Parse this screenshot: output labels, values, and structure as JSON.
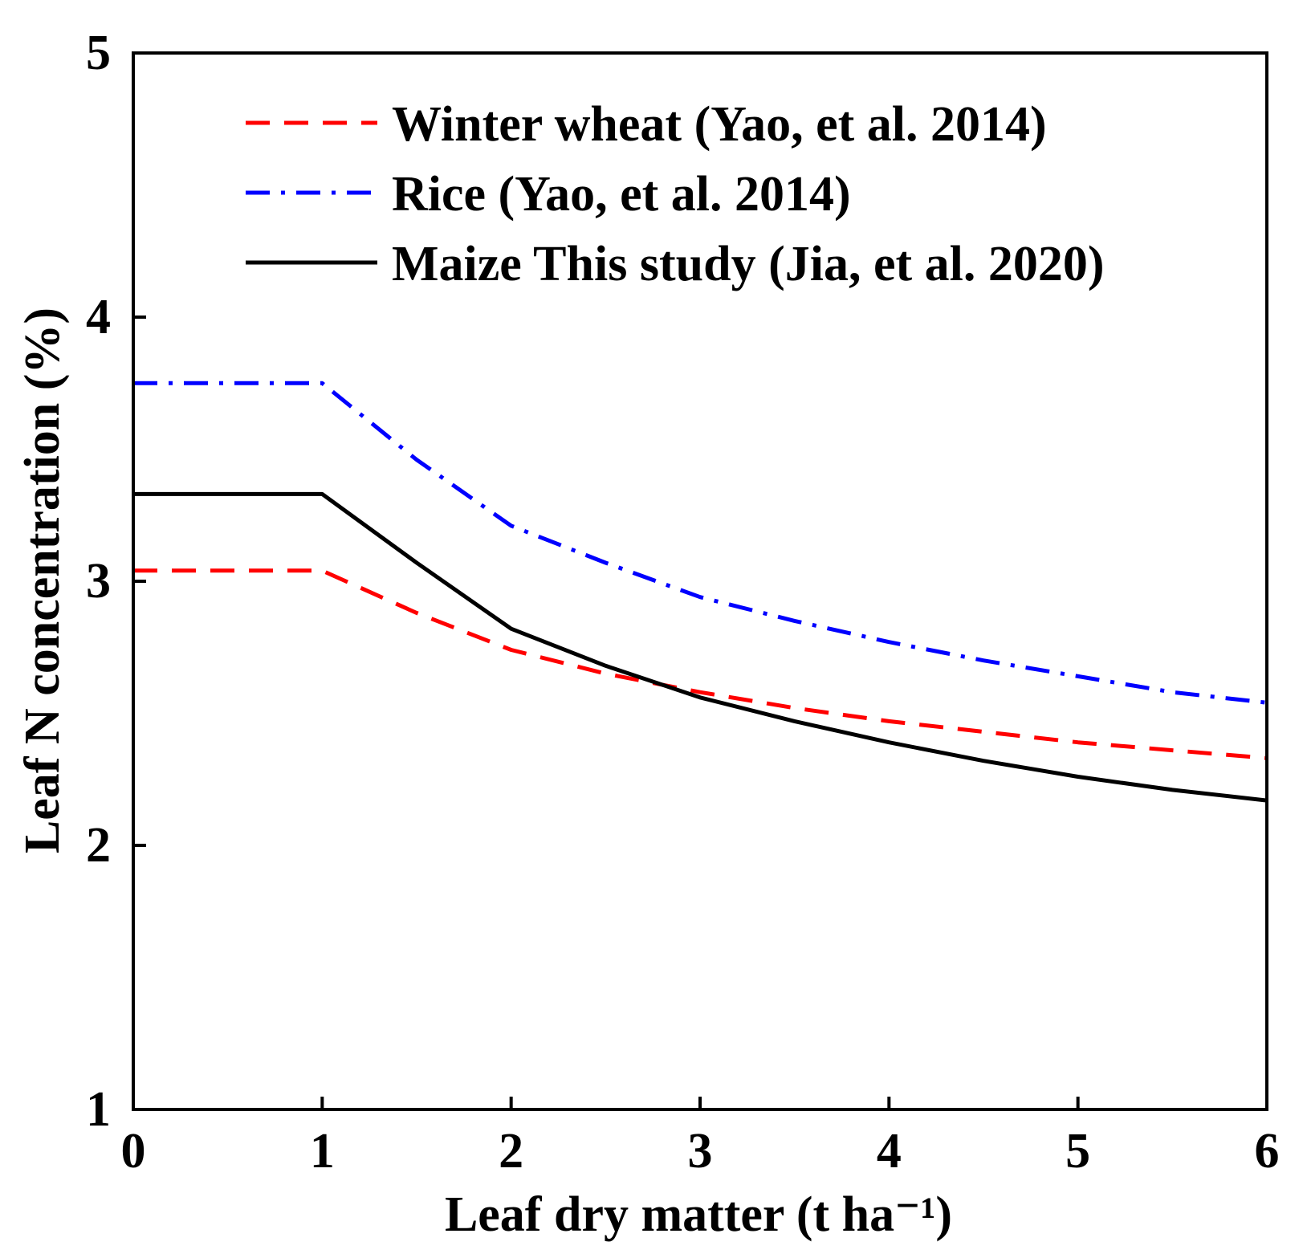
{
  "chart_data": {
    "type": "line",
    "xlabel": "Leaf dry matter (t ha⁻¹)",
    "ylabel": "Leaf N concentration (%)",
    "xlim": [
      0,
      6
    ],
    "ylim": [
      1,
      5
    ],
    "xticks": [
      "0",
      "1",
      "2",
      "3",
      "4",
      "5",
      "6"
    ],
    "yticks": [
      "1",
      "2",
      "3",
      "4",
      "5"
    ],
    "grid": false,
    "legend_position": "top-right",
    "series": [
      {
        "name": "Winter wheat (Yao, et al. 2014)",
        "color": "#ff0000",
        "style": "dashed",
        "x": [
          0,
          1,
          1.5,
          2,
          2.5,
          3,
          3.5,
          4,
          4.5,
          5,
          5.5,
          6
        ],
        "y": [
          3.04,
          3.04,
          2.88,
          2.74,
          2.65,
          2.58,
          2.52,
          2.47,
          2.43,
          2.39,
          2.36,
          2.33
        ]
      },
      {
        "name": "Rice (Yao, et al. 2014)",
        "color": "#0000ff",
        "style": "dash-dot",
        "x": [
          0,
          1,
          1.5,
          2,
          2.5,
          3,
          3.5,
          4,
          4.5,
          5,
          5.5,
          6
        ],
        "y": [
          3.75,
          3.75,
          3.46,
          3.21,
          3.07,
          2.94,
          2.85,
          2.77,
          2.7,
          2.64,
          2.58,
          2.54
        ]
      },
      {
        "name": "Maize This study (Jia, et al. 2020)",
        "color": "#000000",
        "style": "solid",
        "x": [
          0,
          1,
          1.5,
          2,
          2.5,
          3,
          3.5,
          4,
          4.5,
          5,
          5.5,
          6
        ],
        "y": [
          3.33,
          3.33,
          3.07,
          2.82,
          2.68,
          2.56,
          2.47,
          2.39,
          2.32,
          2.26,
          2.21,
          2.17
        ]
      }
    ]
  }
}
